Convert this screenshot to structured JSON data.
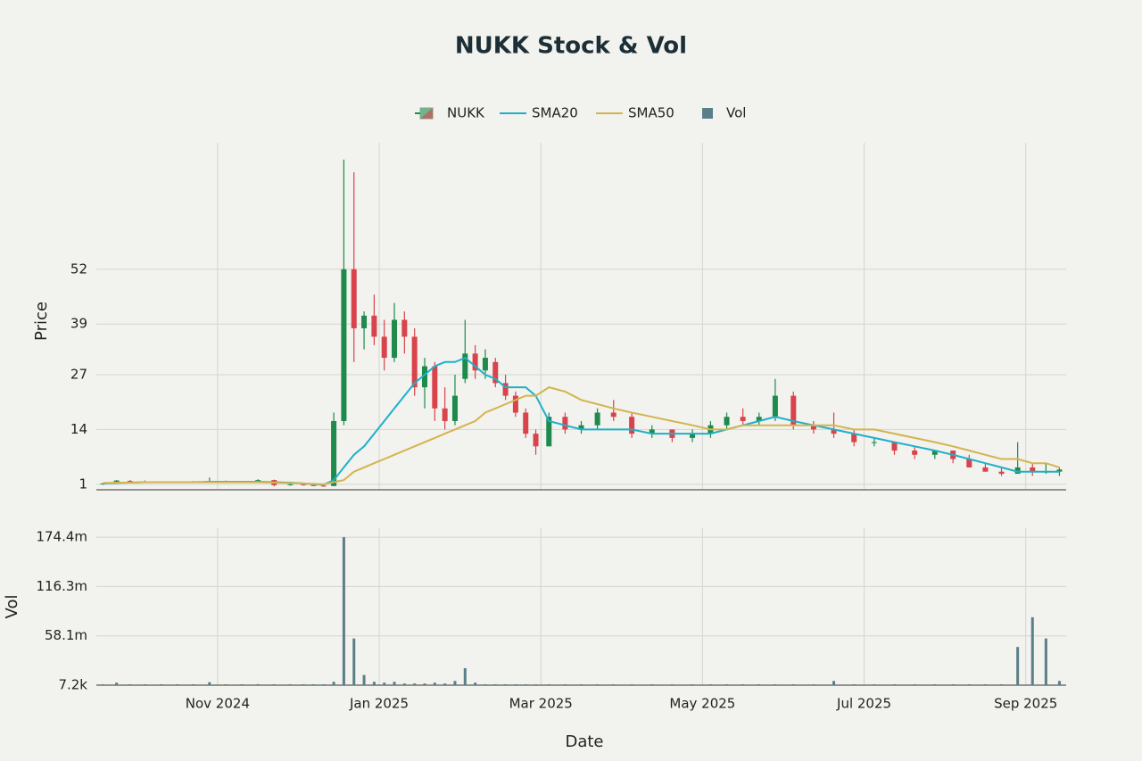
{
  "chart_data": {
    "type": "candlestick",
    "title": "NUKK Stock & Vol",
    "x_label": "Date",
    "y_label": "Price",
    "y2_label": "Vol",
    "x": [
      "2024-09",
      "2024-09",
      "2024-09",
      "2024-10",
      "2024-10",
      "2024-10",
      "2024-10",
      "2024-10",
      "2024-11",
      "2024-11",
      "2024-11",
      "2024-11",
      "2024-11",
      "2024-12",
      "2024-12",
      "2024-12",
      "2024-12",
      "2024-12",
      "2024-12",
      "2024-12",
      "2024-12",
      "2025-01",
      "2025-01",
      "2025-01",
      "2025-01",
      "2025-01",
      "2025-01",
      "2025-01",
      "2025-01",
      "2025-02",
      "2025-02",
      "2025-02",
      "2025-02",
      "2025-02",
      "2025-02",
      "2025-02",
      "2025-02",
      "2025-03",
      "2025-03",
      "2025-03",
      "2025-03",
      "2025-03",
      "2025-04",
      "2025-04",
      "2025-04",
      "2025-04",
      "2025-05",
      "2025-05",
      "2025-05",
      "2025-05",
      "2025-05",
      "2025-06",
      "2025-06",
      "2025-06",
      "2025-06",
      "2025-07",
      "2025-07",
      "2025-07",
      "2025-07",
      "2025-08",
      "2025-08",
      "2025-08",
      "2025-08",
      "2025-08",
      "2025-09",
      "2025-09",
      "2025-09"
    ],
    "xlim": [
      "2024-09",
      "2025-09"
    ],
    "xticks": [
      {
        "value": "2024-11",
        "label": "Nov 2024"
      },
      {
        "value": "2025-01",
        "label": "Jan 2025"
      },
      {
        "value": "2025-03",
        "label": "Mar 2025"
      },
      {
        "value": "2025-05",
        "label": "May 2025"
      },
      {
        "value": "2025-07",
        "label": "Jul 2025"
      },
      {
        "value": "2025-09",
        "label": "Sep 2025"
      }
    ],
    "candles": {
      "name": "NUKK",
      "up_color": "#1e8a4c",
      "down_color": "#d9434b",
      "open": [
        1,
        1.2,
        1.8,
        1.7,
        1.6,
        1.4,
        1.6,
        1.5,
        1.8,
        1.6,
        1.5,
        2.0,
        0.8,
        1,
        0.8,
        0.7,
        0.6,
        16,
        52,
        38,
        41,
        36,
        31,
        40,
        36,
        24,
        29,
        19,
        16,
        26,
        32,
        28,
        30,
        25,
        22,
        18,
        13,
        10,
        17,
        14,
        15,
        18,
        17,
        13,
        14,
        12,
        13,
        15,
        17,
        16,
        17,
        22,
        15,
        14,
        13,
        11,
        11,
        9,
        8,
        9,
        7,
        5,
        4,
        3.5,
        5,
        4,
        4
      ],
      "high": [
        1.3,
        2,
        2,
        1.9,
        1.7,
        1.7,
        1.8,
        2.6,
        1.9,
        1.7,
        2.2,
        2.1,
        1.2,
        1.1,
        0.9,
        0.8,
        18,
        78,
        75,
        42,
        46,
        40,
        44,
        42,
        38,
        31,
        30,
        24,
        27,
        40,
        34,
        33,
        31,
        27,
        23,
        19,
        14,
        18,
        18,
        16,
        19,
        21,
        18,
        15,
        14,
        14,
        16,
        18,
        19,
        18,
        26,
        23,
        16,
        18,
        14,
        12,
        11,
        10,
        9,
        9,
        8,
        6,
        5,
        11,
        6,
        6,
        5
      ],
      "low": [
        0.9,
        1.1,
        1.6,
        1.5,
        1.3,
        1.3,
        1.4,
        1.4,
        1.5,
        1.4,
        1.4,
        0.5,
        0.7,
        0.7,
        0.6,
        0.4,
        0.6,
        15,
        30,
        33,
        34,
        28,
        30,
        32,
        22,
        19,
        16,
        14,
        15,
        25,
        26,
        26,
        24,
        21,
        17,
        12,
        8,
        10,
        13,
        13,
        14,
        16,
        12,
        12,
        11,
        11,
        12,
        14,
        15,
        15,
        16,
        14,
        13,
        12,
        10,
        10,
        8,
        7,
        7,
        6,
        5,
        4,
        3,
        3.5,
        3,
        3.5,
        3
      ],
      "close": [
        1.2,
        1.9,
        1.7,
        1.6,
        1.4,
        1.6,
        1.5,
        1.8,
        1.6,
        1.5,
        2.0,
        0.8,
        1.0,
        0.8,
        0.7,
        0.6,
        16,
        52,
        38,
        41,
        36,
        31,
        40,
        36,
        24,
        29,
        19,
        16,
        22,
        32,
        28,
        31,
        25,
        22,
        18,
        13,
        10,
        17,
        14,
        15,
        18,
        17,
        13,
        14,
        12,
        13,
        15,
        17,
        16,
        17,
        22,
        15,
        14,
        13,
        11,
        11,
        9,
        8,
        9,
        7,
        5,
        4,
        3.5,
        5,
        4,
        4,
        4.5
      ]
    },
    "series": [
      {
        "name": "SMA20",
        "color": "#1fb0c8",
        "values": [
          1.2,
          1.3,
          1.4,
          1.5,
          1.5,
          1.5,
          1.5,
          1.6,
          1.6,
          1.6,
          1.6,
          1.5,
          1.4,
          1.2,
          1.0,
          0.9,
          2,
          5,
          8,
          10,
          13,
          16,
          19,
          22,
          25,
          27,
          29,
          30,
          30,
          31,
          29,
          27,
          26,
          24,
          24,
          24,
          22,
          16,
          15,
          14,
          14,
          14,
          14,
          13,
          13,
          13,
          13,
          14,
          15,
          16,
          17,
          16,
          15,
          14,
          13,
          12,
          11,
          10,
          9,
          8,
          7,
          6,
          5,
          4,
          4,
          4,
          4
        ]
      },
      {
        "name": "SMA50",
        "color": "#d4b44e",
        "values": [
          1.3,
          1.4,
          1.4,
          1.5,
          1.5,
          1.5,
          1.5,
          1.5,
          1.5,
          1.5,
          1.5,
          1.4,
          1.3,
          1.2,
          1.1,
          1.0,
          1.5,
          2,
          4,
          5,
          6,
          7,
          8,
          9,
          10,
          11,
          12,
          13,
          14,
          15,
          16,
          18,
          19,
          20,
          21,
          22,
          22,
          24,
          23,
          21,
          20,
          19,
          18,
          17,
          16,
          15,
          14,
          14,
          15,
          15,
          15,
          15,
          15,
          15,
          14,
          14,
          13,
          12,
          11,
          10,
          9,
          8,
          7,
          7,
          6,
          6,
          5
        ]
      }
    ],
    "volume": {
      "name": "Vol",
      "color": "#5a7f88",
      "axis": "y2",
      "values": [
        500000,
        3000000,
        400000,
        200000,
        100000,
        200000,
        100000,
        3500000,
        200000,
        100000,
        1200000,
        300000,
        200000,
        100000,
        100000,
        100000,
        4000000,
        174400000,
        55000000,
        12000000,
        4000000,
        3000000,
        4000000,
        2000000,
        2000000,
        2000000,
        3000000,
        2000000,
        5000000,
        20000000,
        3000000,
        1000000,
        1000000,
        500000,
        400000,
        400000,
        300000,
        500000,
        300000,
        300000,
        400000,
        300000,
        300000,
        200000,
        200000,
        200000,
        300000,
        300000,
        200000,
        300000,
        1000000,
        400000,
        300000,
        5000000,
        300000,
        200000,
        200000,
        200000,
        200000,
        200000,
        200000,
        200000,
        200000,
        45000000,
        80000000,
        55000000,
        5000000
      ]
    },
    "ylim": [
      -0.3,
      82
    ],
    "yticks": [
      1,
      14,
      27,
      39,
      52
    ],
    "y2lim": [
      7200,
      185000000
    ],
    "y2ticks": [
      {
        "value": 7200,
        "label": "7.2k"
      },
      {
        "value": 58100000,
        "label": "58.1m"
      },
      {
        "value": 116300000,
        "label": "116.3m"
      },
      {
        "value": 174400000,
        "label": "174.4m"
      }
    ],
    "grid": true
  }
}
